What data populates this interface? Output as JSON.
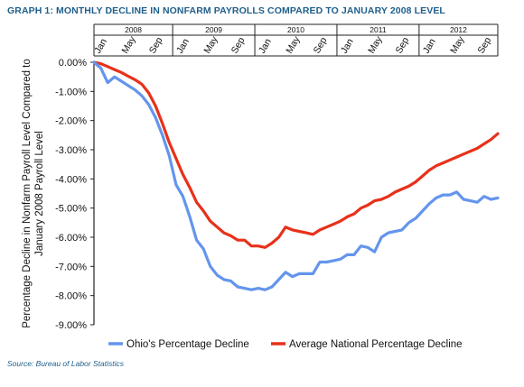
{
  "title": "GRAPH 1: MONTHLY DECLINE IN NONFARM PAYROLLS COMPARED TO JANUARY 2008 LEVEL",
  "source": "Source: Bureau of Labor Statistics",
  "chart_data": {
    "type": "line",
    "ylabel_line1": "Percentage Decline in Nonfarm Payroll Level Compared to",
    "ylabel_line2": "January 2008 Payroll Level",
    "ylim": [
      -9,
      0
    ],
    "yticks": [
      "0.00%",
      "-1.00%",
      "-2.00%",
      "-3.00%",
      "-4.00%",
      "-5.00%",
      "-6.00%",
      "-7.00%",
      "-8.00%",
      "-9.00%"
    ],
    "years": [
      "2008",
      "2009",
      "2010",
      "2011",
      "2012"
    ],
    "month_labels": [
      "Jan",
      "May",
      "Sep",
      "Jan",
      "May",
      "Sep",
      "Jan",
      "May",
      "Sep",
      "Jan",
      "May",
      "Sep",
      "Jan",
      "May",
      "Sep"
    ],
    "month_label_index": [
      0,
      4,
      8,
      12,
      16,
      20,
      24,
      28,
      32,
      36,
      40,
      44,
      48,
      52,
      56
    ],
    "grid": false,
    "legend_position": "bottom",
    "series": [
      {
        "name": "Ohio's Percentage Decline",
        "color": "#6495ed",
        "values": [
          0.0,
          -0.2,
          -0.7,
          -0.5,
          -0.65,
          -0.8,
          -0.95,
          -1.15,
          -1.45,
          -1.9,
          -2.5,
          -3.2,
          -4.2,
          -4.6,
          -5.3,
          -6.1,
          -6.4,
          -7.0,
          -7.3,
          -7.45,
          -7.5,
          -7.7,
          -7.75,
          -7.8,
          -7.75,
          -7.8,
          -7.7,
          -7.45,
          -7.2,
          -7.35,
          -7.25,
          -7.25,
          -7.25,
          -6.85,
          -6.85,
          -6.8,
          -6.75,
          -6.6,
          -6.6,
          -6.3,
          -6.35,
          -6.5,
          -6.0,
          -5.85,
          -5.8,
          -5.75,
          -5.5,
          -5.35,
          -5.1,
          -4.85,
          -4.65,
          -4.55,
          -4.55,
          -4.45,
          -4.7,
          -4.75,
          -4.8,
          -4.6,
          -4.7,
          -4.65
        ]
      },
      {
        "name": "Average National Percentage Decline",
        "color": "#e8311a",
        "values": [
          0.0,
          -0.05,
          -0.15,
          -0.25,
          -0.35,
          -0.48,
          -0.6,
          -0.75,
          -1.05,
          -1.5,
          -2.1,
          -2.75,
          -3.3,
          -3.85,
          -4.3,
          -4.8,
          -5.1,
          -5.45,
          -5.65,
          -5.85,
          -5.95,
          -6.1,
          -6.1,
          -6.3,
          -6.3,
          -6.35,
          -6.2,
          -6.0,
          -5.65,
          -5.75,
          -5.8,
          -5.85,
          -5.9,
          -5.75,
          -5.65,
          -5.55,
          -5.45,
          -5.3,
          -5.2,
          -5.0,
          -4.9,
          -4.75,
          -4.7,
          -4.6,
          -4.45,
          -4.35,
          -4.25,
          -4.1,
          -3.9,
          -3.7,
          -3.55,
          -3.45,
          -3.35,
          -3.25,
          -3.15,
          -3.05,
          -2.95,
          -2.8,
          -2.65,
          -2.45
        ]
      }
    ]
  }
}
